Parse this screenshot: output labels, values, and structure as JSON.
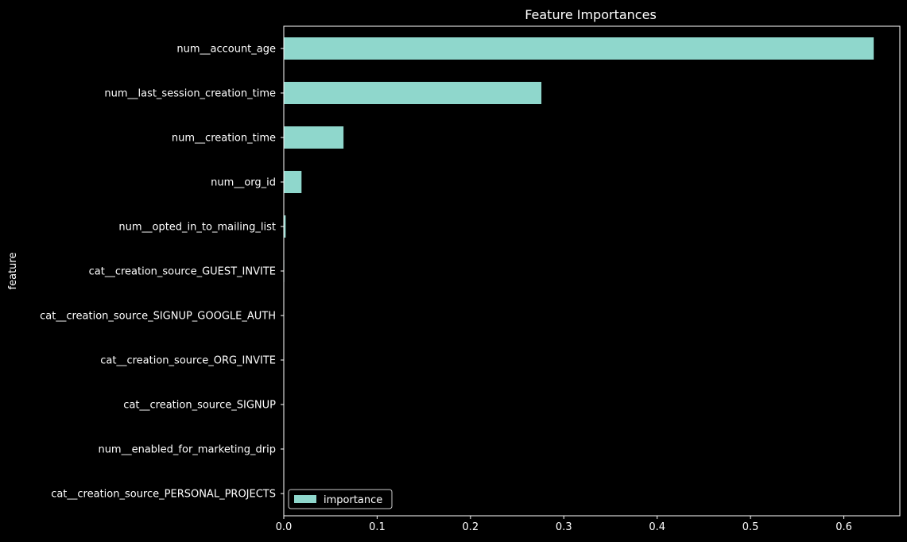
{
  "chart_data": {
    "type": "bar",
    "orientation": "horizontal",
    "title": "Feature Importances",
    "xlabel": "",
    "ylabel": "feature",
    "xlim": [
      0,
      0.66
    ],
    "xticks": [
      "0.0",
      "0.1",
      "0.2",
      "0.3",
      "0.4",
      "0.5",
      "0.6"
    ],
    "grid": false,
    "legend": {
      "entries": [
        "importance"
      ],
      "placement": "lower-left"
    },
    "bar_color": "#8fd7cc",
    "background_color": "#000000",
    "categories": [
      "num__account_age",
      "num__last_session_creation_time",
      "num__creation_time",
      "num__org_id",
      "num__opted_in_to_mailing_list",
      "cat__creation_source_GUEST_INVITE",
      "cat__creation_source_SIGNUP_GOOGLE_AUTH",
      "cat__creation_source_ORG_INVITE",
      "cat__creation_source_SIGNUP",
      "num__enabled_for_marketing_drip",
      "cat__creation_source_PERSONAL_PROJECTS"
    ],
    "series": [
      {
        "name": "importance",
        "values": [
          0.632,
          0.276,
          0.064,
          0.019,
          0.002,
          0.0005,
          0.0004,
          0.0003,
          0.0002,
          0.0001,
          0.0001
        ]
      }
    ]
  }
}
